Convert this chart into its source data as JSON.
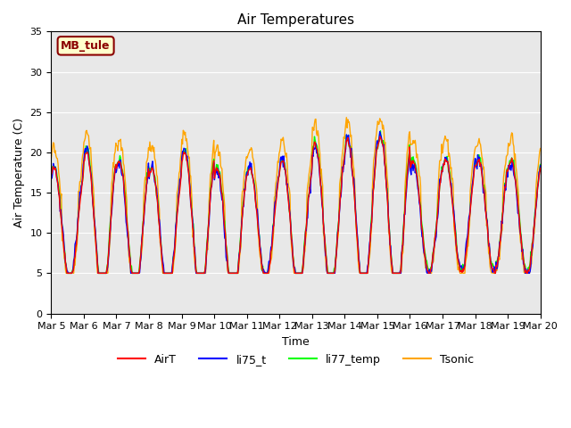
{
  "title": "Air Temperatures",
  "xlabel": "Time",
  "ylabel": "Air Temperature (C)",
  "ylim": [
    0,
    35
  ],
  "yticks": [
    0,
    5,
    10,
    15,
    20,
    25,
    30,
    35
  ],
  "annotation": "MB_tule",
  "legend": [
    "AirT",
    "li75_t",
    "li77_temp",
    "Tsonic"
  ],
  "colors": [
    "red",
    "blue",
    "lime",
    "orange"
  ],
  "background_color": "#e8e8e8",
  "x_labels": [
    "Mar 5",
    "Mar 6",
    "Mar 7",
    "Mar 8",
    "Mar 9",
    "Mar 10",
    "Mar 11",
    "Mar 12",
    "Mar 13",
    "Mar 14",
    "Mar 15",
    "Mar 16",
    "Mar 17",
    "Mar 18",
    "Mar 19",
    "Mar 20"
  ],
  "n_days": 15,
  "pts_per_day": 48,
  "day_amplitudes": [
    7,
    9,
    8,
    8,
    9,
    8,
    7,
    8,
    9,
    9.5,
    10,
    7,
    7,
    7,
    7
  ],
  "day_bases": [
    11,
    11,
    11,
    10,
    11,
    10,
    11,
    11,
    12,
    12,
    12,
    12,
    12,
    12,
    12
  ]
}
